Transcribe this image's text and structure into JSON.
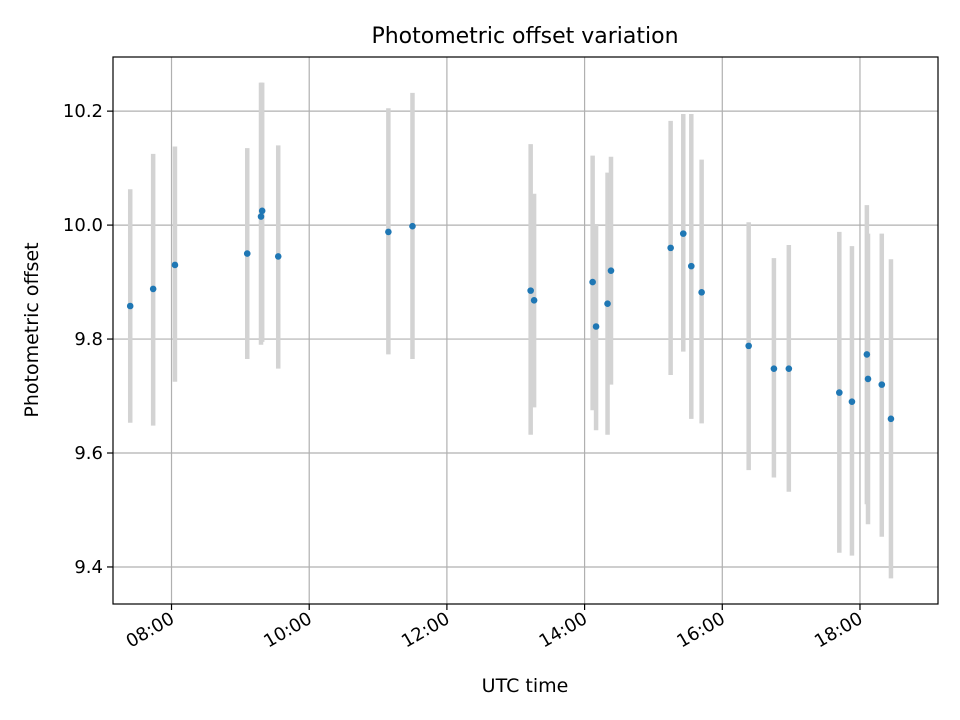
{
  "chart_data": {
    "type": "scatter",
    "title": "Photometric offset variation",
    "xlabel": "UTC time",
    "ylabel": "Photometric offset",
    "xlim": [
      "07:09",
      "19:08"
    ],
    "ylim": [
      9.335,
      10.295
    ],
    "x_ticks": [
      "08:00",
      "10:00",
      "12:00",
      "14:00",
      "16:00",
      "18:00"
    ],
    "y_ticks": [
      9.4,
      9.6,
      9.8,
      10.0,
      10.2
    ],
    "grid": true,
    "marker_color": "#1f77b4",
    "errorbar_color": "#d3d3d3",
    "points": [
      {
        "t": "07:24",
        "y": 9.858,
        "lo": 9.653,
        "hi": 10.063
      },
      {
        "t": "07:44",
        "y": 9.888,
        "lo": 9.648,
        "hi": 10.125
      },
      {
        "t": "08:03",
        "y": 9.93,
        "lo": 9.725,
        "hi": 10.138
      },
      {
        "t": "09:06",
        "y": 9.95,
        "lo": 9.765,
        "hi": 10.135
      },
      {
        "t": "09:18",
        "y": 10.015,
        "lo": 9.79,
        "hi": 10.25
      },
      {
        "t": "09:19",
        "y": 10.025,
        "lo": 9.795,
        "hi": 10.25
      },
      {
        "t": "09:33",
        "y": 9.945,
        "lo": 9.748,
        "hi": 10.14
      },
      {
        "t": "11:09",
        "y": 9.988,
        "lo": 9.773,
        "hi": 10.205
      },
      {
        "t": "11:30",
        "y": 9.998,
        "lo": 9.765,
        "hi": 10.232
      },
      {
        "t": "13:13",
        "y": 9.885,
        "lo": 9.632,
        "hi": 10.142
      },
      {
        "t": "13:16",
        "y": 9.868,
        "lo": 9.68,
        "hi": 10.055
      },
      {
        "t": "14:07",
        "y": 9.9,
        "lo": 9.675,
        "hi": 10.122
      },
      {
        "t": "14:10",
        "y": 9.822,
        "lo": 9.64,
        "hi": 10.002
      },
      {
        "t": "14:20",
        "y": 9.862,
        "lo": 9.632,
        "hi": 10.092
      },
      {
        "t": "14:23",
        "y": 9.92,
        "lo": 9.72,
        "hi": 10.12
      },
      {
        "t": "15:15",
        "y": 9.96,
        "lo": 9.737,
        "hi": 10.183
      },
      {
        "t": "15:26",
        "y": 9.985,
        "lo": 9.778,
        "hi": 10.195
      },
      {
        "t": "15:33",
        "y": 9.928,
        "lo": 9.66,
        "hi": 10.195
      },
      {
        "t": "15:42",
        "y": 9.882,
        "lo": 9.652,
        "hi": 10.115
      },
      {
        "t": "16:23",
        "y": 9.788,
        "lo": 9.57,
        "hi": 10.005
      },
      {
        "t": "16:45",
        "y": 9.748,
        "lo": 9.557,
        "hi": 9.942
      },
      {
        "t": "16:58",
        "y": 9.748,
        "lo": 9.532,
        "hi": 9.965
      },
      {
        "t": "17:42",
        "y": 9.706,
        "lo": 9.425,
        "hi": 9.988
      },
      {
        "t": "17:53",
        "y": 9.69,
        "lo": 9.42,
        "hi": 9.963
      },
      {
        "t": "18:06",
        "y": 9.773,
        "lo": 9.51,
        "hi": 10.035
      },
      {
        "t": "18:07",
        "y": 9.73,
        "lo": 9.475,
        "hi": 9.985
      },
      {
        "t": "18:19",
        "y": 9.72,
        "lo": 9.453,
        "hi": 9.985
      },
      {
        "t": "18:27",
        "y": 9.66,
        "lo": 9.38,
        "hi": 9.94
      }
    ]
  }
}
